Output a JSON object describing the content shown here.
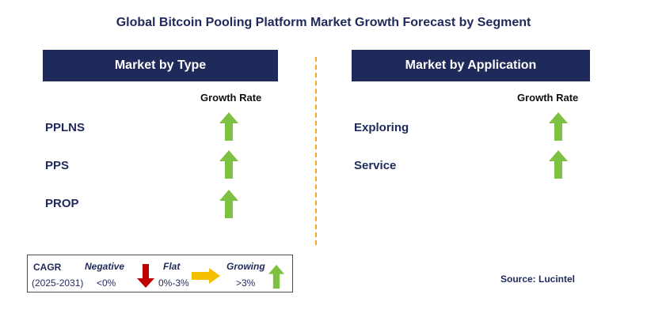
{
  "title": "Global Bitcoin Pooling Platform Market Growth Forecast by Segment",
  "left_panel": {
    "header": "Market by Type",
    "column_label": "Growth Rate",
    "rows": [
      {
        "label": "PPLNS",
        "trend": "growing"
      },
      {
        "label": "PPS",
        "trend": "growing"
      },
      {
        "label": "PROP",
        "trend": "growing"
      }
    ]
  },
  "right_panel": {
    "header": "Market by Application",
    "column_label": "Growth Rate",
    "rows": [
      {
        "label": "Exploring",
        "trend": "growing"
      },
      {
        "label": "Service",
        "trend": "growing"
      }
    ]
  },
  "legend": {
    "cagr_label": "CAGR",
    "period": "(2025-2031)",
    "negative_label": "Negative",
    "negative_range": "<0%",
    "flat_label": "Flat",
    "flat_range": "0%-3%",
    "growing_label": "Growing",
    "growing_range": ">3%"
  },
  "source": "Source: Lucintel",
  "colors": {
    "navy": "#1f2a5a",
    "growing": "#7cc142",
    "negative": "#c00000",
    "flat": "#f5c000",
    "divider": "#f5a623"
  }
}
